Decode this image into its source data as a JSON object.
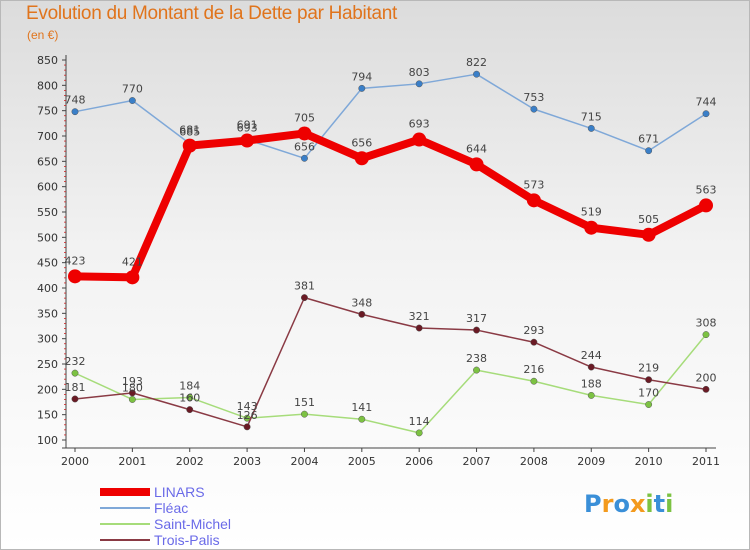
{
  "title": "Evolution du Montant de la Dette par Habitant",
  "subtitle": "(en €)",
  "logo": {
    "letters": [
      "P",
      "r",
      "o",
      "x",
      "i",
      "t",
      "i"
    ],
    "colors": [
      "#3a8fd8",
      "#f39a1d",
      "#3a8fd8",
      "#f39a1d",
      "#7cc242",
      "#3a8fd8",
      "#7cc242"
    ]
  },
  "chart_data": {
    "type": "line",
    "x": [
      "2000",
      "2001",
      "2002",
      "2003",
      "2004",
      "2005",
      "2006",
      "2007",
      "2008",
      "2009",
      "2010",
      "2011"
    ],
    "ylim": [
      100,
      850
    ],
    "yticks": [
      100,
      150,
      200,
      250,
      300,
      350,
      400,
      450,
      500,
      550,
      600,
      650,
      700,
      750,
      800,
      850
    ],
    "grid": false,
    "legend_position": "bottom-left",
    "series": [
      {
        "name": "LINARS",
        "color": "#ee0000",
        "marker": "#ee0000",
        "width": 8,
        "values": [
          423,
          421,
          681,
          691,
          705,
          656,
          693,
          644,
          573,
          519,
          505,
          563
        ]
      },
      {
        "name": "Fléac",
        "color": "#7fa8d8",
        "marker": "#3a7fc8",
        "width": 1.5,
        "values": [
          748,
          770,
          685,
          693,
          656,
          794,
          803,
          822,
          753,
          715,
          671,
          744
        ]
      },
      {
        "name": "Saint-Michel",
        "color": "#a6dc7a",
        "marker": "#7cc242",
        "width": 1.5,
        "values": [
          232,
          180,
          184,
          143,
          151,
          141,
          114,
          238,
          216,
          188,
          170,
          308
        ]
      },
      {
        "name": "Trois-Palis",
        "color": "#8a3a44",
        "marker": "#6a1a24",
        "width": 1.5,
        "values": [
          181,
          193,
          160,
          126,
          381,
          348,
          321,
          317,
          293,
          244,
          219,
          200
        ]
      }
    ]
  }
}
